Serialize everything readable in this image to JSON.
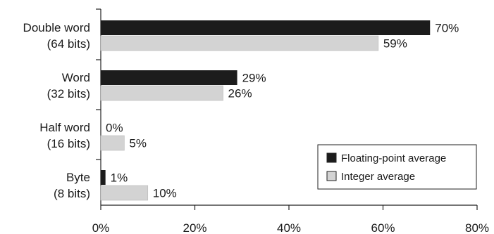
{
  "chart_data": {
    "type": "bar",
    "orientation": "horizontal",
    "categories": [
      [
        "Double word",
        "(64 bits)"
      ],
      [
        "Word",
        "(32 bits)"
      ],
      [
        "Half word",
        "(16 bits)"
      ],
      [
        "Byte",
        "(8 bits)"
      ]
    ],
    "series": [
      {
        "name": "Floating-point average",
        "values": [
          70,
          29,
          0,
          1
        ],
        "labels": [
          "70%",
          "29%",
          "0%",
          "1%"
        ],
        "color": "#1c1c1c"
      },
      {
        "name": "Integer average",
        "values": [
          59,
          26,
          5,
          10
        ],
        "labels": [
          "59%",
          "26%",
          "5%",
          "10%"
        ],
        "color": "#d3d3d3"
      }
    ],
    "xlim": [
      0,
      80
    ],
    "xticks": [
      0,
      20,
      40,
      60,
      80
    ],
    "xtick_labels": [
      "0%",
      "20%",
      "40%",
      "60%",
      "80%"
    ],
    "title": "",
    "xlabel": "",
    "ylabel": "",
    "grid": false,
    "legend_position": "bottom-right"
  }
}
